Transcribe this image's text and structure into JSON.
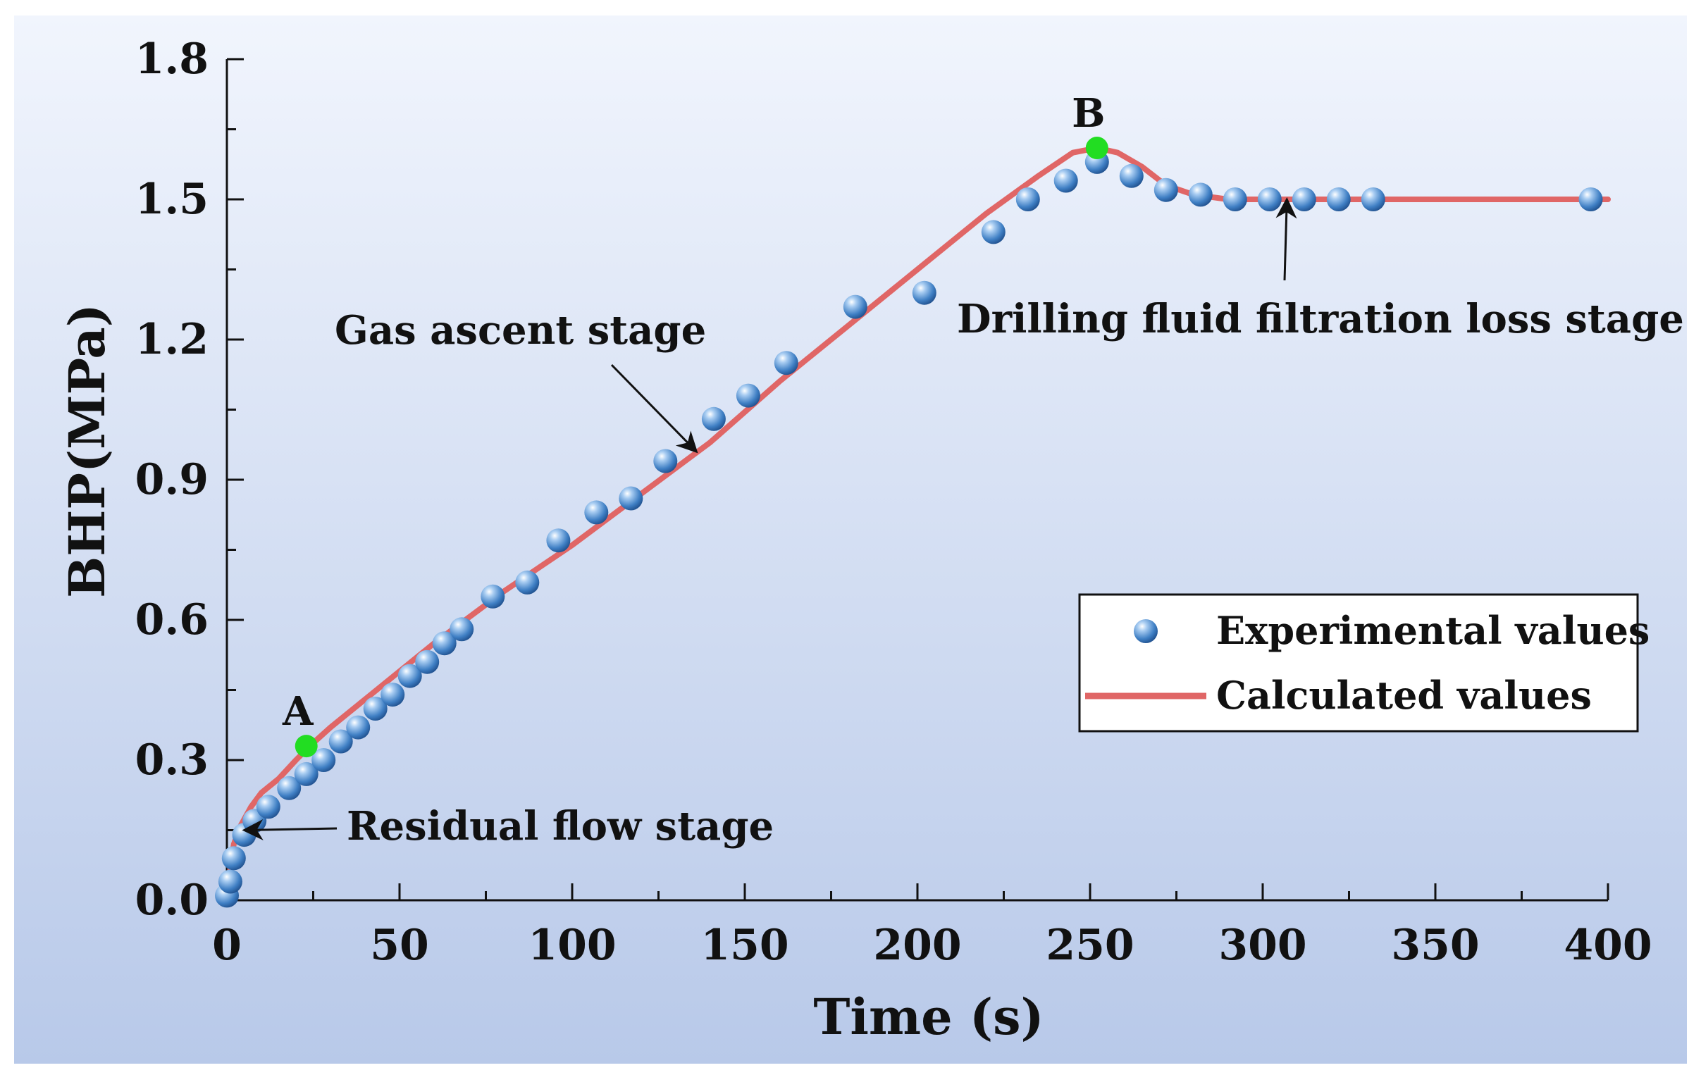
{
  "chart_data": {
    "type": "line",
    "xlabel": "Time (s)",
    "ylabel": "BHP(MPa)",
    "xlim": [
      0,
      400
    ],
    "ylim": [
      0,
      1.8
    ],
    "xticks": [
      "0",
      "50",
      "100",
      "150",
      "200",
      "250",
      "300",
      "350",
      "400"
    ],
    "yticks": [
      "0.0",
      "0.3",
      "0.6",
      "0.9",
      "1.2",
      "1.5",
      "1.8"
    ],
    "xtick_values": [
      0,
      50,
      100,
      150,
      200,
      250,
      300,
      350,
      400
    ],
    "ytick_values": [
      0,
      0.3,
      0.6,
      0.9,
      1.2,
      1.5,
      1.8
    ],
    "series": [
      {
        "name": "Experimental values",
        "kind": "scatter",
        "color": "#3f7fc4",
        "x": [
          0,
          1,
          2,
          5,
          8,
          12,
          18,
          23,
          28,
          33,
          38,
          43,
          48,
          53,
          58,
          63,
          68,
          77,
          87,
          96,
          107,
          117,
          127,
          141,
          151,
          162,
          182,
          202,
          222,
          232,
          243,
          252,
          262,
          272,
          282,
          292,
          302,
          312,
          322,
          332,
          395
        ],
        "y": [
          0.01,
          0.04,
          0.09,
          0.14,
          0.17,
          0.2,
          0.24,
          0.27,
          0.3,
          0.34,
          0.37,
          0.41,
          0.44,
          0.48,
          0.51,
          0.55,
          0.58,
          0.65,
          0.68,
          0.77,
          0.83,
          0.86,
          0.94,
          1.03,
          1.08,
          1.15,
          1.27,
          1.3,
          1.43,
          1.5,
          1.54,
          1.58,
          1.55,
          1.52,
          1.51,
          1.5,
          1.5,
          1.5,
          1.5,
          1.5,
          1.5
        ]
      },
      {
        "name": "Calculated values",
        "kind": "line",
        "color": "#e06666",
        "x": [
          0,
          1,
          2,
          4,
          7,
          10,
          15,
          20,
          24,
          30,
          40,
          60,
          80,
          100,
          120,
          140,
          160,
          180,
          200,
          220,
          235,
          245,
          252,
          258,
          265,
          272,
          280,
          290,
          300,
          320,
          350,
          400
        ],
        "y": [
          0,
          0.07,
          0.12,
          0.16,
          0.2,
          0.23,
          0.26,
          0.3,
          0.33,
          0.37,
          0.43,
          0.55,
          0.66,
          0.76,
          0.87,
          0.98,
          1.11,
          1.23,
          1.35,
          1.47,
          1.55,
          1.6,
          1.61,
          1.6,
          1.57,
          1.53,
          1.51,
          1.5,
          1.5,
          1.5,
          1.5,
          1.5
        ]
      }
    ],
    "points": [
      {
        "label": "A",
        "x": 23,
        "y": 0.33,
        "color": "#22dd22"
      },
      {
        "label": "B",
        "x": 252,
        "y": 1.61,
        "color": "#22dd22"
      }
    ],
    "annotations": [
      {
        "text": "Residual flow stage",
        "target_x": 5,
        "target_y": 0.15
      },
      {
        "text": "Gas ascent stage",
        "target_x": 136,
        "target_y": 0.96
      },
      {
        "text": "Drilling fluid filtration loss stage",
        "target_x": 307,
        "target_y": 1.5
      }
    ],
    "legend": {
      "position": "lower-right",
      "entries": [
        "Experimental values",
        "Calculated values"
      ]
    },
    "background_gradient": [
      "#f1f5fd",
      "#b8c9e9"
    ]
  }
}
